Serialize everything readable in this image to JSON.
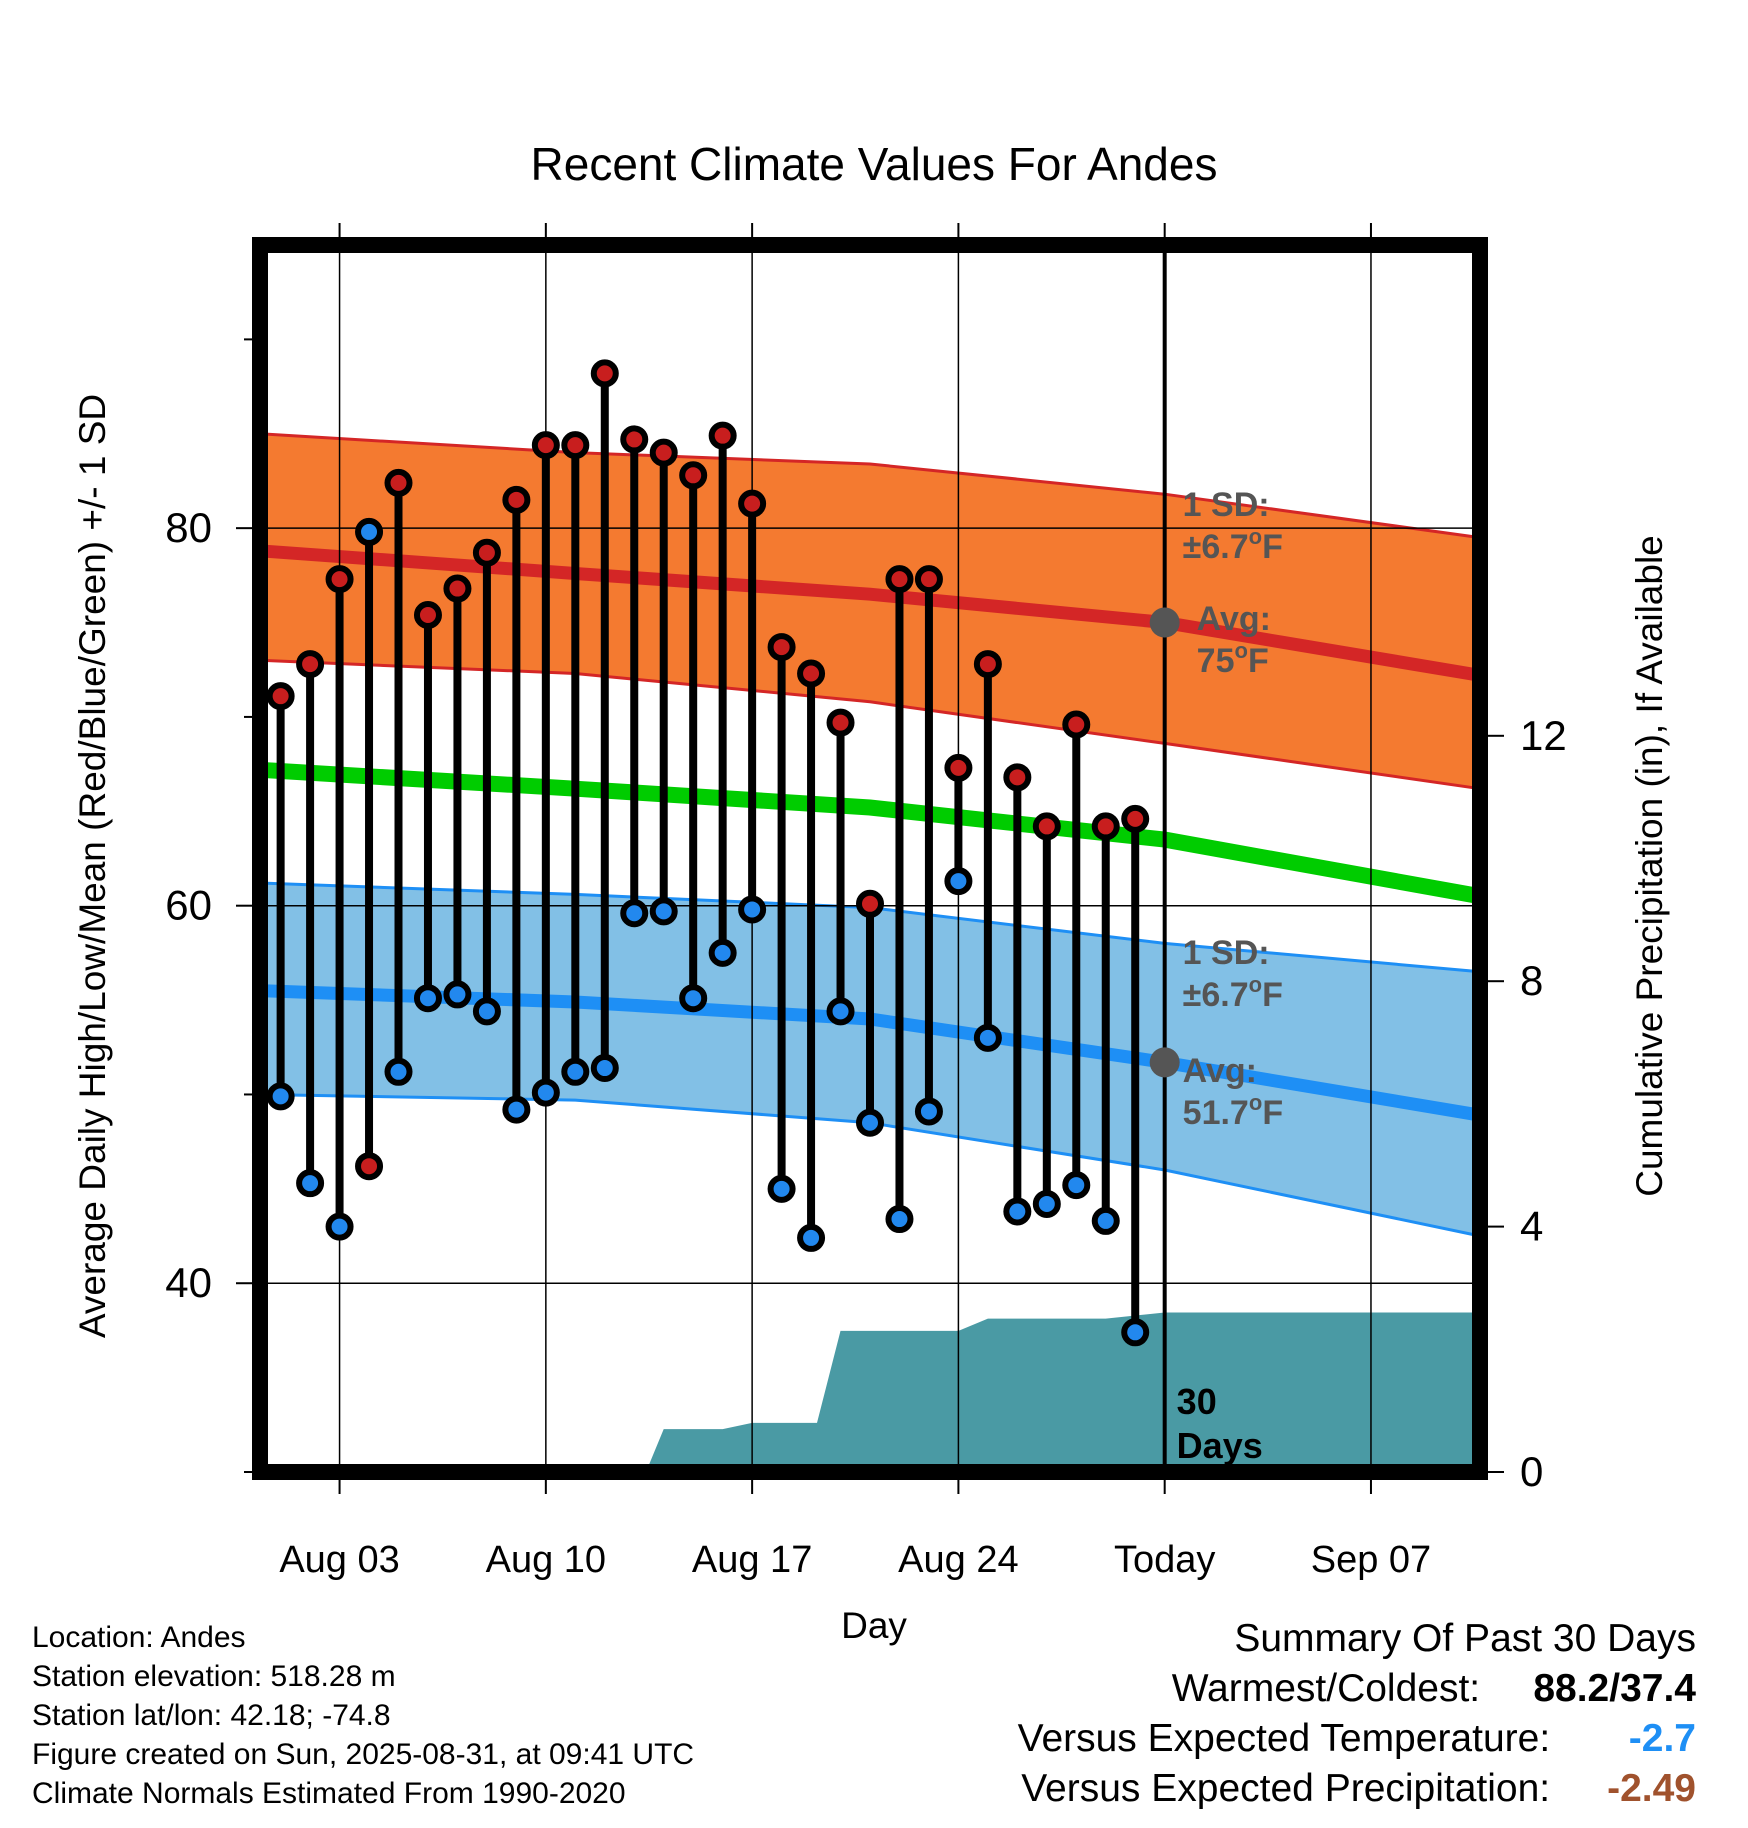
{
  "chart_data": {
    "type": "line",
    "title": "Recent Climate Values For Andes",
    "xlabel": "Day",
    "ylabel": "Average Daily High/Low/Mean (Red/Blue/Green) +/- 1 SD",
    "y2label": "Cumulative Precipitation (in), If Available",
    "ylim": [
      30,
      95
    ],
    "y2lim": [
      0,
      20
    ],
    "yticks": [
      40,
      60,
      80
    ],
    "y2ticks": [
      0,
      4,
      8,
      12
    ],
    "xlim": [
      -0.7,
      40.7
    ],
    "xticks": [
      {
        "pos": 2,
        "label": "Aug 03"
      },
      {
        "pos": 9,
        "label": "Aug 10"
      },
      {
        "pos": 16,
        "label": "Aug 17"
      },
      {
        "pos": 23,
        "label": "Aug 24"
      },
      {
        "pos": 30,
        "label": "Today"
      },
      {
        "pos": 37,
        "label": "Sep 07"
      }
    ],
    "today_pos": 30,
    "grid": true,
    "series": [
      {
        "name": "Daily High",
        "x": [
          0,
          1,
          2,
          3,
          4,
          5,
          6,
          7,
          8,
          9,
          10,
          11,
          12,
          13,
          14,
          15,
          16,
          17,
          18,
          19,
          20,
          21,
          22,
          23,
          24,
          25,
          26,
          27,
          28,
          29
        ],
        "values": [
          71.1,
          72.8,
          77.3,
          46.2,
          82.4,
          75.4,
          76.8,
          78.7,
          81.5,
          84.4,
          84.4,
          88.2,
          84.7,
          84.0,
          82.8,
          84.9,
          81.3,
          73.7,
          72.3,
          69.7,
          60.1,
          77.3,
          77.3,
          67.3,
          72.8,
          66.8,
          64.2,
          69.6,
          64.2,
          64.6
        ]
      },
      {
        "name": "Daily Low",
        "x": [
          0,
          1,
          2,
          3,
          4,
          5,
          6,
          7,
          8,
          9,
          10,
          11,
          12,
          13,
          14,
          15,
          16,
          17,
          18,
          19,
          20,
          21,
          22,
          23,
          24,
          25,
          26,
          27,
          28,
          29
        ],
        "values": [
          49.9,
          45.3,
          43.0,
          79.8,
          51.2,
          55.1,
          55.3,
          54.4,
          49.2,
          50.1,
          51.2,
          51.4,
          59.6,
          59.7,
          55.1,
          57.5,
          59.8,
          45.0,
          42.4,
          54.4,
          48.5,
          43.4,
          49.1,
          61.3,
          53.0,
          43.8,
          44.2,
          45.2,
          43.3,
          37.4
        ]
      }
    ],
    "normal_high": {
      "x": [
        -0.7,
        10,
        20,
        30,
        40.7
      ],
      "avg": [
        78.8,
        77.6,
        76.5,
        75.0,
        72.2
      ],
      "upper": [
        85.0,
        84.0,
        83.4,
        81.8,
        79.5
      ],
      "lower": [
        73.0,
        72.3,
        70.8,
        68.6,
        66.2
      ]
    },
    "normal_mean": {
      "x": [
        -0.7,
        10,
        20,
        30,
        40.7
      ],
      "values": [
        67.2,
        66.2,
        65.2,
        63.5,
        60.5
      ]
    },
    "normal_low": {
      "x": [
        -0.7,
        10,
        20,
        30,
        40.7
      ],
      "avg": [
        55.5,
        54.9,
        54.0,
        51.7,
        48.9
      ],
      "upper": [
        61.2,
        60.6,
        59.9,
        58.0,
        56.5
      ],
      "lower": [
        50.0,
        49.7,
        48.5,
        46.0,
        42.5
      ]
    },
    "precipitation": {
      "x": [
        -0.7,
        12.4,
        13,
        15,
        16,
        18,
        18.2,
        19,
        20.1,
        22,
        23,
        24,
        28,
        30,
        40.7
      ],
      "values": [
        0,
        0,
        0.7,
        0.7,
        0.8,
        0.8,
        0.8,
        2.3,
        2.3,
        2.3,
        2.3,
        2.5,
        2.5,
        2.6,
        2.6
      ]
    },
    "annotations": {
      "high_sd_label": "1 SD:",
      "high_sd_value": "±6.7",
      "high_avg_label": "Avg:",
      "high_avg_value": "75",
      "low_sd_label": "1 SD:",
      "low_sd_value": "±6.7",
      "low_avg_label": "Avg:",
      "low_avg_value": "51.7",
      "degree_mark": "o",
      "unit": "F",
      "days_label_1": "30",
      "days_label_2": "Days"
    },
    "colors": {
      "high_band": "#f47a30",
      "high_line": "#d42626",
      "mean_line": "#00cc00",
      "low_band": "#82c0e6",
      "low_line": "#1e8ff5",
      "precip": "#4a9aa4",
      "high_marker": "#c81e1e",
      "low_marker": "#2288ee",
      "avg_marker": "#555555",
      "annotation_text": "#555555"
    }
  },
  "info": {
    "location": "Location: Andes",
    "elevation": "Station elevation: 518.28 m",
    "latlon": "Station lat/lon: 42.18; -74.8",
    "created": "Figure created on Sun, 2025-08-31, at 09:41 UTC",
    "normals": "Climate Normals Estimated From 1990-2020"
  },
  "summary": {
    "title": "Summary Of Past 30 Days",
    "warm_cold_label": "Warmest/Coldest:",
    "warm_cold_value": "88.2/37.4",
    "temp_label": "Versus Expected Temperature:",
    "temp_value": "-2.7",
    "temp_color": "#1e8ff5",
    "precip_label": "Versus Expected Precipitation:",
    "precip_value": "-2.49",
    "precip_color": "#a0522d"
  }
}
